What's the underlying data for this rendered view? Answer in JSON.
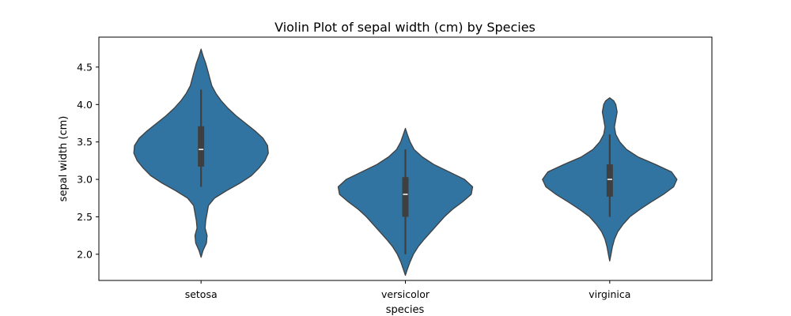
{
  "chart_data": {
    "type": "violin",
    "title": "Violin Plot of sepal width (cm) by Species",
    "xlabel": "species",
    "ylabel": "sepal width (cm)",
    "categories": [
      "setosa",
      "versicolor",
      "virginica"
    ],
    "ylim": [
      1.65,
      4.9
    ],
    "yticks": [
      2.0,
      2.5,
      3.0,
      3.5,
      4.0,
      4.5
    ],
    "ytick_labels": [
      "2.0",
      "2.5",
      "3.0",
      "3.5",
      "4.0",
      "4.5"
    ],
    "fill_color": "#3274a1",
    "edge_color": "#3f3f3f",
    "box_color": "#3f3f3f",
    "median_color": "#ffffff",
    "grid": false,
    "series": [
      {
        "category": "setosa",
        "min": 2.9,
        "q1": 3.17,
        "median": 3.4,
        "q3": 3.71,
        "max": 4.2,
        "density": [
          [
            1.96,
            0.0
          ],
          [
            2.05,
            0.03
          ],
          [
            2.15,
            0.08
          ],
          [
            2.25,
            0.09
          ],
          [
            2.35,
            0.06
          ],
          [
            2.45,
            0.07
          ],
          [
            2.55,
            0.09
          ],
          [
            2.65,
            0.11
          ],
          [
            2.75,
            0.2
          ],
          [
            2.85,
            0.38
          ],
          [
            2.95,
            0.58
          ],
          [
            3.05,
            0.75
          ],
          [
            3.15,
            0.86
          ],
          [
            3.25,
            0.95
          ],
          [
            3.35,
            1.0
          ],
          [
            3.45,
            0.99
          ],
          [
            3.55,
            0.92
          ],
          [
            3.65,
            0.8
          ],
          [
            3.75,
            0.66
          ],
          [
            3.85,
            0.52
          ],
          [
            3.95,
            0.4
          ],
          [
            4.05,
            0.3
          ],
          [
            4.15,
            0.22
          ],
          [
            4.25,
            0.16
          ],
          [
            4.35,
            0.13
          ],
          [
            4.45,
            0.1
          ],
          [
            4.55,
            0.07
          ],
          [
            4.65,
            0.03
          ],
          [
            4.74,
            0.0
          ]
        ]
      },
      {
        "category": "versicolor",
        "min": 2.0,
        "q1": 2.5,
        "median": 2.8,
        "q3": 3.03,
        "max": 3.4,
        "density": [
          [
            1.72,
            0.0
          ],
          [
            1.8,
            0.03
          ],
          [
            1.9,
            0.07
          ],
          [
            2.0,
            0.12
          ],
          [
            2.1,
            0.19
          ],
          [
            2.2,
            0.28
          ],
          [
            2.3,
            0.38
          ],
          [
            2.4,
            0.48
          ],
          [
            2.5,
            0.58
          ],
          [
            2.6,
            0.7
          ],
          [
            2.7,
            0.85
          ],
          [
            2.8,
            0.98
          ],
          [
            2.9,
            1.0
          ],
          [
            3.0,
            0.88
          ],
          [
            3.1,
            0.65
          ],
          [
            3.2,
            0.42
          ],
          [
            3.3,
            0.25
          ],
          [
            3.4,
            0.13
          ],
          [
            3.5,
            0.07
          ],
          [
            3.6,
            0.03
          ],
          [
            3.68,
            0.0
          ]
        ]
      },
      {
        "category": "virginica",
        "min": 2.5,
        "q1": 2.77,
        "median": 3.0,
        "q3": 3.2,
        "max": 3.6,
        "density": [
          [
            1.91,
            0.0
          ],
          [
            2.0,
            0.02
          ],
          [
            2.1,
            0.04
          ],
          [
            2.2,
            0.07
          ],
          [
            2.3,
            0.12
          ],
          [
            2.4,
            0.2
          ],
          [
            2.5,
            0.3
          ],
          [
            2.6,
            0.45
          ],
          [
            2.7,
            0.62
          ],
          [
            2.8,
            0.8
          ],
          [
            2.9,
            0.95
          ],
          [
            3.0,
            1.0
          ],
          [
            3.1,
            0.92
          ],
          [
            3.2,
            0.68
          ],
          [
            3.3,
            0.42
          ],
          [
            3.4,
            0.25
          ],
          [
            3.5,
            0.15
          ],
          [
            3.6,
            0.09
          ],
          [
            3.7,
            0.07
          ],
          [
            3.8,
            0.09
          ],
          [
            3.9,
            0.11
          ],
          [
            4.0,
            0.09
          ],
          [
            4.05,
            0.06
          ],
          [
            4.09,
            0.0
          ]
        ]
      }
    ]
  }
}
